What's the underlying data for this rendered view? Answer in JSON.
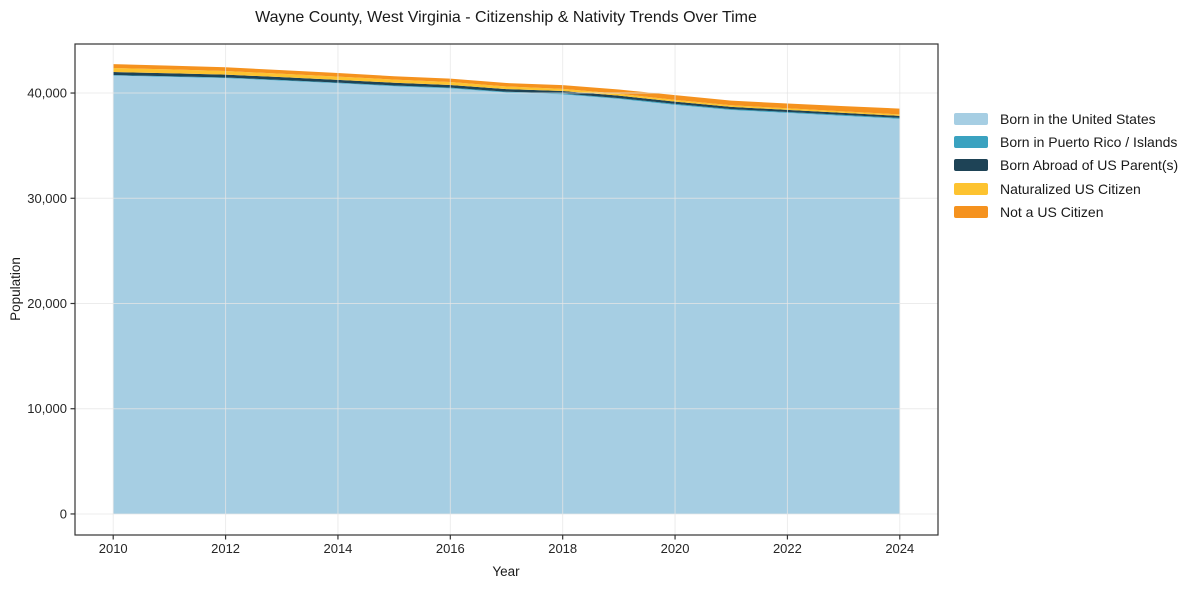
{
  "chart": {
    "title": "Wayne County, West Virginia - Citizenship & Nativity Trends Over Time",
    "xlabel": "Year",
    "ylabel": "Population"
  },
  "chart_data": {
    "type": "area",
    "stacked": true,
    "title": "Wayne County, West Virginia - Citizenship & Nativity Trends Over Time",
    "xlabel": "Year",
    "ylabel": "Population",
    "x": [
      2010,
      2011,
      2012,
      2013,
      2014,
      2015,
      2016,
      2017,
      2018,
      2019,
      2020,
      2021,
      2022,
      2023,
      2024
    ],
    "series": [
      {
        "name": "Born in the United States",
        "color": "#a6cee3",
        "values": [
          41660,
          41540,
          41420,
          41180,
          40930,
          40650,
          40440,
          40050,
          39870,
          39440,
          38880,
          38390,
          38110,
          37830,
          37550
        ]
      },
      {
        "name": "Born in Puerto Rico / Islands",
        "color": "#3aa2c0",
        "values": [
          50,
          55,
          60,
          60,
          65,
          70,
          70,
          75,
          80,
          80,
          85,
          85,
          90,
          90,
          90
        ]
      },
      {
        "name": "Born Abroad of US Parent(s)",
        "color": "#1e4356",
        "values": [
          290,
          280,
          270,
          270,
          260,
          260,
          250,
          250,
          240,
          230,
          220,
          210,
          200,
          195,
          190
        ]
      },
      {
        "name": "Naturalized US Citizen",
        "color": "#fdc330",
        "values": [
          380,
          370,
          340,
          320,
          310,
          300,
          290,
          250,
          210,
          180,
          160,
          150,
          150,
          145,
          140
        ]
      },
      {
        "name": "Not a US Citizen",
        "color": "#f5921e",
        "values": [
          370,
          355,
          360,
          350,
          335,
          320,
          320,
          325,
          355,
          400,
          455,
          445,
          450,
          500,
          550
        ]
      }
    ],
    "totals": [
      42750,
      42600,
      42450,
      42180,
      41900,
      41600,
      41370,
      40950,
      40755,
      40330,
      39800,
      39280,
      39000,
      38760,
      38520
    ],
    "x_ticks": [
      2010,
      2012,
      2014,
      2016,
      2018,
      2020,
      2022,
      2024
    ],
    "x_tick_labels": [
      "2010",
      "2012",
      "2014",
      "2016",
      "2018",
      "2020",
      "2022",
      "2024"
    ],
    "y_ticks": [
      0,
      10000,
      20000,
      30000,
      40000
    ],
    "y_tick_labels": [
      "0",
      "10,000",
      "20,000",
      "30,000",
      "40,000"
    ],
    "xlim": [
      2009.32,
      2024.68
    ],
    "ylim": [
      -2000,
      44660
    ],
    "grid": true,
    "legend_position": "right outside",
    "colors": {
      "grid": "#e6e6e6",
      "spine": "#333333",
      "tick": "#333333",
      "tick_text": "#262626",
      "background": "#ffffff"
    }
  }
}
